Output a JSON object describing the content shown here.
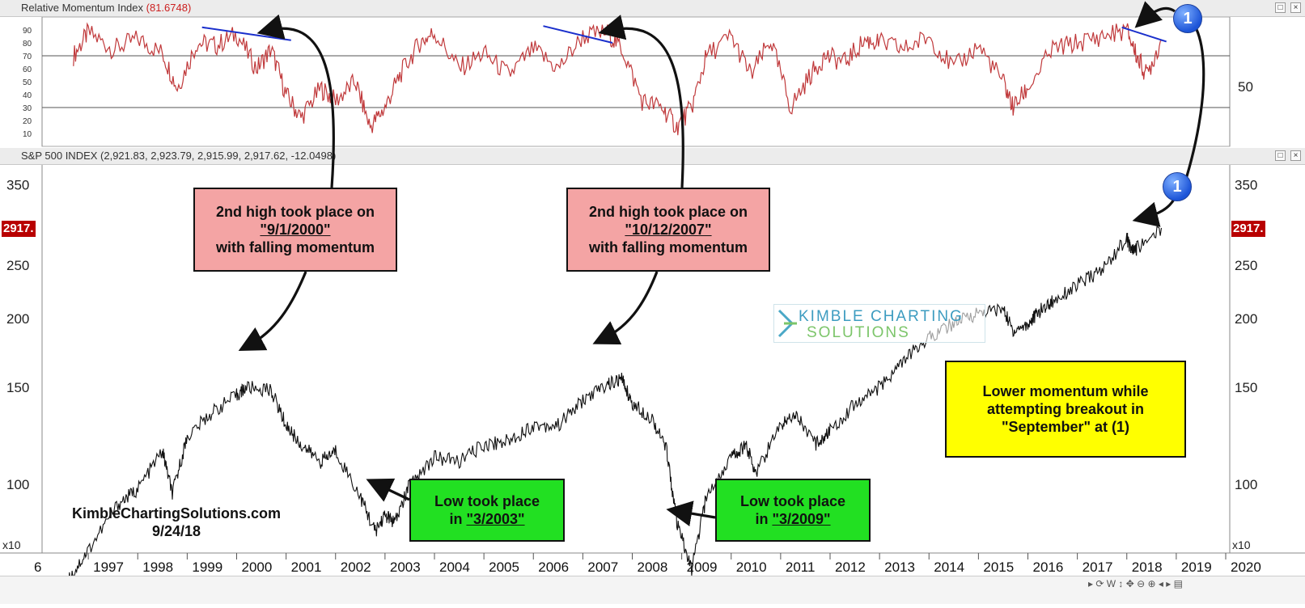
{
  "rmi_panel": {
    "title": "Relative Momentum Index",
    "value": "(81.6748)",
    "y_ticks": [
      "90",
      "80",
      "70",
      "60",
      "50",
      "40",
      "30",
      "20",
      "10"
    ],
    "right_label": "50",
    "line_color": "#c0393b",
    "trend_color": "#1a2fcc"
  },
  "spx_panel": {
    "title": "S&P 500 INDEX (2,921.83, 2,923.79, 2,915.99, 2,917.62, -12.0498)",
    "y_ticks": [
      "350",
      "250",
      "200",
      "150",
      "100"
    ],
    "price_tag": "2917.",
    "x10_label": "x10",
    "left_partial_year": "6",
    "years": [
      "1997",
      "1998",
      "1999",
      "2000",
      "2001",
      "2002",
      "2003",
      "2004",
      "2005",
      "2006",
      "2007",
      "2008",
      "2009",
      "2010",
      "2011",
      "2012",
      "2013",
      "2014",
      "2015",
      "2016",
      "2017",
      "2018",
      "2019",
      "2020"
    ]
  },
  "callouts": {
    "high_2000": {
      "line1": "2nd high took place on",
      "line2": "\"9/1/2000\"",
      "line3": "with falling momentum"
    },
    "high_2007": {
      "line1": "2nd high took place on",
      "line2": "\"10/12/2007\"",
      "line3": "with falling momentum"
    },
    "low_2003": {
      "line1": "Low took place",
      "line2_prefix": "in ",
      "line2": "\"3/2003\""
    },
    "low_2009": {
      "line1": "Low took place",
      "line2_prefix": "in ",
      "line2": "\"3/2009\""
    },
    "momentum_note": {
      "line1": "Lower momentum while",
      "line2": "attempting breakout in",
      "line3": "\"September\" at (1)"
    }
  },
  "markers": {
    "top": "1",
    "bottom": "1"
  },
  "watermark": {
    "line1": "KIMBLE CHARTING",
    "line2": "SOLUTIONS"
  },
  "credit": {
    "site": "KimbleChartingSolutions.com",
    "date": "9/24/18"
  },
  "chart_data": [
    {
      "type": "line",
      "title": "Relative Momentum Index",
      "ylim": [
        0,
        100
      ],
      "reference_lines": [
        70,
        30
      ],
      "x": [
        1996.7,
        1997.0,
        1997.5,
        1998.0,
        1998.5,
        1998.8,
        1999.2,
        1999.6,
        2000.0,
        2000.4,
        2000.7,
        2001.0,
        2001.3,
        2001.7,
        2002.0,
        2002.4,
        2002.7,
        2003.0,
        2003.3,
        2003.7,
        2004.0,
        2004.5,
        2005.0,
        2005.5,
        2006.0,
        2006.5,
        2007.0,
        2007.5,
        2007.8,
        2008.2,
        2008.6,
        2008.9,
        2009.2,
        2009.5,
        2010.0,
        2010.4,
        2010.8,
        2011.2,
        2011.6,
        2011.9,
        2012.3,
        2012.7,
        2013.0,
        2013.5,
        2014.0,
        2014.5,
        2015.0,
        2015.5,
        2015.7,
        2016.0,
        2016.5,
        2017.0,
        2017.5,
        2018.0,
        2018.2,
        2018.4,
        2018.7
      ],
      "y": [
        70,
        88,
        75,
        83,
        72,
        45,
        80,
        78,
        87,
        60,
        75,
        40,
        22,
        45,
        35,
        50,
        15,
        30,
        55,
        80,
        88,
        60,
        72,
        55,
        75,
        60,
        85,
        88,
        75,
        35,
        30,
        15,
        30,
        70,
        85,
        55,
        82,
        30,
        55,
        70,
        65,
        82,
        80,
        75,
        85,
        60,
        78,
        50,
        30,
        45,
        75,
        80,
        85,
        90,
        70,
        55,
        82
      ],
      "trendlines": [
        {
          "x": [
            1999.3,
            2001.1
          ],
          "y": [
            92,
            82
          ]
        },
        {
          "x": [
            2006.2,
            2007.6
          ],
          "y": [
            93,
            80
          ]
        },
        {
          "x": [
            2017.9,
            2018.8
          ],
          "y": [
            92,
            81
          ]
        }
      ]
    },
    {
      "type": "line",
      "title": "S&P 500 INDEX",
      "yscale": "log",
      "ylim": [
        75,
        380
      ],
      "multiplier_label": "x10",
      "last_value": 2917.62,
      "x": [
        1996.6,
        1997.0,
        1997.6,
        1998.0,
        1998.5,
        1998.7,
        1999.0,
        1999.5,
        2000.0,
        2000.2,
        2000.7,
        2001.0,
        2001.3,
        2001.7,
        2002.0,
        2002.5,
        2002.8,
        2003.0,
        2003.2,
        2003.5,
        2004.0,
        2004.5,
        2005.0,
        2005.5,
        2006.0,
        2006.5,
        2007.0,
        2007.5,
        2007.8,
        2008.0,
        2008.4,
        2008.7,
        2008.9,
        2009.2,
        2009.5,
        2010.0,
        2010.3,
        2010.5,
        2011.0,
        2011.3,
        2011.7,
        2012.0,
        2012.5,
        2013.0,
        2013.5,
        2014.0,
        2014.5,
        2015.0,
        2015.5,
        2015.7,
        2016.0,
        2016.2,
        2016.5,
        2017.0,
        2017.5,
        2018.0,
        2018.1,
        2018.2,
        2018.7
      ],
      "y": [
        67,
        76,
        92,
        98,
        115,
        96,
        122,
        135,
        145,
        150,
        148,
        128,
        118,
        110,
        115,
        95,
        82,
        88,
        85,
        100,
        112,
        110,
        118,
        120,
        128,
        128,
        142,
        152,
        155,
        140,
        132,
        115,
        85,
        70,
        95,
        112,
        118,
        105,
        128,
        135,
        118,
        125,
        140,
        150,
        168,
        185,
        196,
        205,
        208,
        190,
        195,
        205,
        215,
        230,
        245,
        280,
        265,
        268,
        292
      ],
      "annotations": [
        {
          "x": 2000.7,
          "text": "2nd high took place on \"9/1/2000\" with falling momentum"
        },
        {
          "x": 2007.8,
          "text": "2nd high took place on \"10/12/2007\" with falling momentum"
        },
        {
          "x": 2003.2,
          "text": "Low took place in \"3/2003\""
        },
        {
          "x": 2009.2,
          "text": "Low took place in \"3/2009\""
        },
        {
          "x": 2018.7,
          "text": "Lower momentum while attempting breakout in \"September\" at (1)"
        }
      ]
    }
  ]
}
